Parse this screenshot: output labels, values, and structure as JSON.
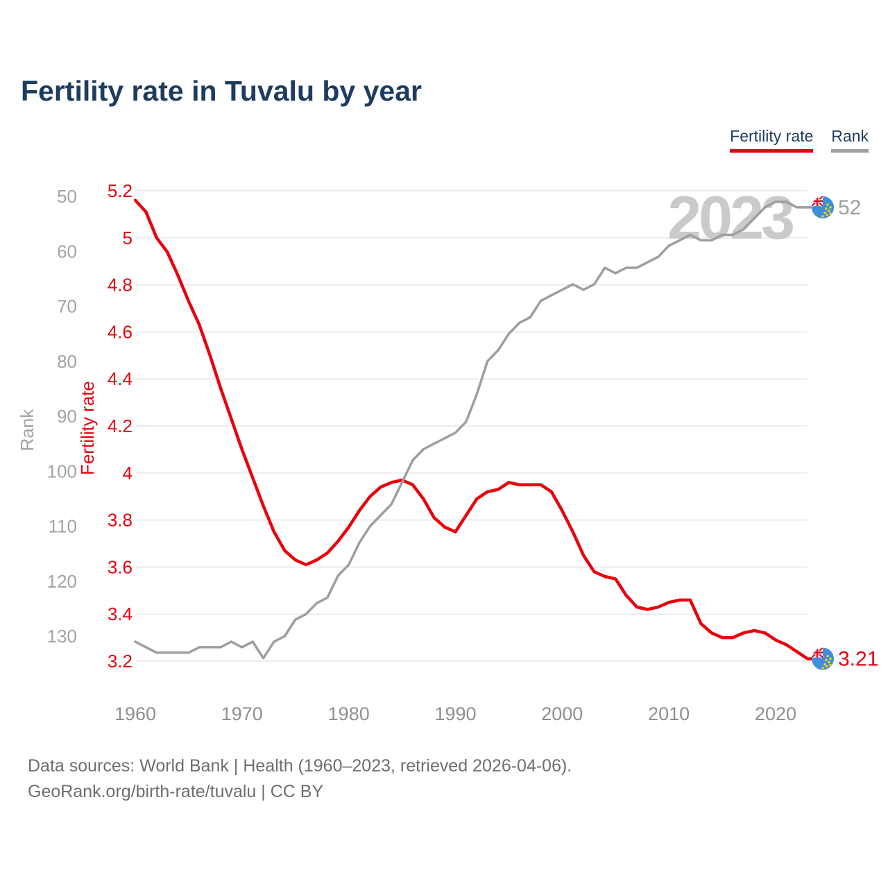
{
  "header": {
    "title": "Fertility rate in Tuvalu by year"
  },
  "legend": {
    "items": [
      {
        "label": "Fertility rate",
        "color": "#e8000d"
      },
      {
        "label": "Rank",
        "color": "#9e9e9e"
      }
    ]
  },
  "watermark": "2023",
  "footer": {
    "line1": "Data sources: World Bank | Health (1960–2023, retrieved 2026-04-06).",
    "line2": "GeoRank.org/birth-rate/tuvalu | CC BY"
  },
  "chart_data": {
    "type": "line",
    "title": "Fertility rate in Tuvalu by year",
    "grid": "horizontal",
    "legend_position": "top-right",
    "x_axis": {
      "ticks": [
        1960,
        1970,
        1980,
        1990,
        2000,
        2010,
        2020
      ],
      "range": [
        1960,
        2023
      ]
    },
    "fertility_axis": {
      "label": "Fertility rate",
      "color": "#e8000d",
      "ticks": [
        "5.2",
        "5",
        "4.8",
        "4.6",
        "4.4",
        "4.2",
        "4",
        "3.8",
        "3.6",
        "3.4",
        "3.2"
      ],
      "range": [
        3.2,
        5.2
      ]
    },
    "rank_axis": {
      "label": "Rank",
      "color": "#a3a3a3",
      "ticks": [
        "50",
        "60",
        "70",
        "80",
        "90",
        "100",
        "110",
        "120",
        "130"
      ],
      "range": [
        50,
        134
      ],
      "inverted": true
    },
    "x": [
      1960,
      1961,
      1962,
      1963,
      1964,
      1965,
      1966,
      1967,
      1968,
      1969,
      1970,
      1971,
      1972,
      1973,
      1974,
      1975,
      1976,
      1977,
      1978,
      1979,
      1980,
      1981,
      1982,
      1983,
      1984,
      1985,
      1986,
      1987,
      1988,
      1989,
      1990,
      1991,
      1992,
      1993,
      1994,
      1995,
      1996,
      1997,
      1998,
      1999,
      2000,
      2001,
      2002,
      2003,
      2004,
      2005,
      2006,
      2007,
      2008,
      2009,
      2010,
      2011,
      2012,
      2013,
      2014,
      2015,
      2016,
      2017,
      2018,
      2019,
      2020,
      2021,
      2022,
      2023
    ],
    "series": [
      {
        "name": "Fertility rate",
        "axis": "fertility",
        "color": "#e8000d",
        "end_label": "3.21",
        "values": [
          5.16,
          5.11,
          5.0,
          4.94,
          4.84,
          4.73,
          4.63,
          4.5,
          4.36,
          4.23,
          4.1,
          3.98,
          3.86,
          3.75,
          3.67,
          3.63,
          3.61,
          3.63,
          3.66,
          3.71,
          3.77,
          3.84,
          3.9,
          3.94,
          3.96,
          3.97,
          3.95,
          3.89,
          3.81,
          3.77,
          3.75,
          3.82,
          3.89,
          3.92,
          3.93,
          3.96,
          3.95,
          3.95,
          3.95,
          3.92,
          3.84,
          3.75,
          3.65,
          3.58,
          3.56,
          3.55,
          3.48,
          3.43,
          3.42,
          3.43,
          3.45,
          3.46,
          3.46,
          3.36,
          3.32,
          3.3,
          3.3,
          3.32,
          3.33,
          3.32,
          3.29,
          3.27,
          3.24,
          3.21
        ]
      },
      {
        "name": "Rank",
        "axis": "rank",
        "color": "#9e9e9e",
        "end_label": "52",
        "values": [
          131,
          132,
          133,
          133,
          133,
          133,
          132,
          132,
          132,
          131,
          132,
          131,
          134,
          131,
          130,
          127,
          126,
          124,
          123,
          119,
          117,
          113,
          110,
          108,
          106,
          102,
          98,
          96,
          95,
          94,
          93,
          91,
          86,
          80,
          78,
          75,
          73,
          72,
          69,
          68,
          67,
          66,
          67,
          66,
          63,
          64,
          63,
          63,
          62,
          61,
          59,
          58,
          57,
          58,
          58,
          57,
          57,
          56,
          54,
          52,
          51,
          51,
          52,
          52
        ]
      }
    ]
  }
}
